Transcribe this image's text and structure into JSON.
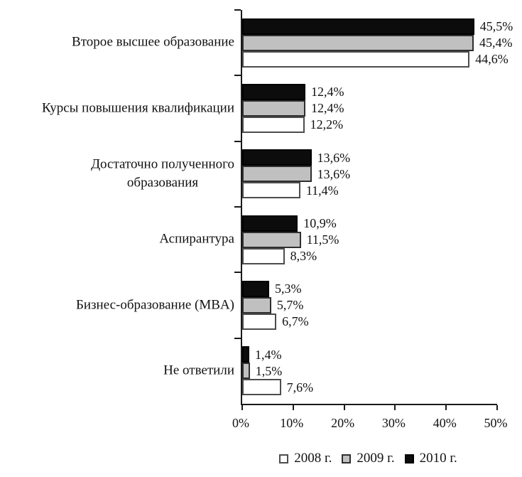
{
  "chart_data": {
    "type": "bar",
    "orientation": "horizontal",
    "title": "",
    "grid": false,
    "legend_position": "bottom-center",
    "x_axis": {
      "min": 0,
      "max": 50,
      "tick_values": [
        0,
        10,
        20,
        30,
        40,
        50
      ],
      "tick_labels": [
        "0%",
        "10%",
        "20%",
        "30%",
        "40%",
        "50%"
      ]
    },
    "categories": [
      {
        "name": "Второе высшее образование",
        "lines": [
          "Второе высшее образование"
        ]
      },
      {
        "name": "Курсы повышения квалификации",
        "lines": [
          "Курсы повышения квалификации"
        ]
      },
      {
        "name": "Достаточно полученного образования",
        "lines": [
          "Достаточно полученного",
          "образования"
        ]
      },
      {
        "name": "Аспирантура",
        "lines": [
          "Аспирантура"
        ]
      },
      {
        "name": "Бизнес-образование (MBA)",
        "lines": [
          "Бизнес-образование (MBA)"
        ]
      },
      {
        "name": "Не ответили",
        "lines": [
          "Не ответили"
        ]
      }
    ],
    "series_top_to_bottom": [
      {
        "name": "2010 г.",
        "color": "#0c0c0c",
        "border": "#000000",
        "values": [
          45.5,
          12.4,
          13.6,
          10.9,
          5.3,
          1.4
        ],
        "labels": [
          "45,5%",
          "12,4%",
          "13,6%",
          "10,9%",
          "5,3%",
          "1,4%"
        ]
      },
      {
        "name": "2009 г.",
        "color": "#c0c0c0",
        "border": "#2f2f2f",
        "values": [
          45.4,
          12.4,
          13.6,
          11.5,
          5.7,
          1.5
        ],
        "labels": [
          "45,4%",
          "12,4%",
          "13,6%",
          "11,5%",
          "5,7%",
          "1,5%"
        ]
      },
      {
        "name": "2008 г.",
        "color": "#ffffff",
        "border": "#4d4d4d",
        "values": [
          44.6,
          12.2,
          11.4,
          8.3,
          6.7,
          7.6
        ],
        "labels": [
          "44,6%",
          "12,2%",
          "11,4%",
          "8,3%",
          "6,7%",
          "7,6%"
        ]
      }
    ],
    "legend": [
      {
        "label": "2008 г.",
        "color": "#ffffff",
        "border": "#4d4d4d"
      },
      {
        "label": "2009 г.",
        "color": "#c0c0c0",
        "border": "#2f2f2f"
      },
      {
        "label": "2010 г.",
        "color": "#0c0c0c",
        "border": "#000000"
      }
    ]
  },
  "colors": {
    "axis": "#1a1a1a",
    "text": "#111111",
    "background": "#ffffff"
  }
}
